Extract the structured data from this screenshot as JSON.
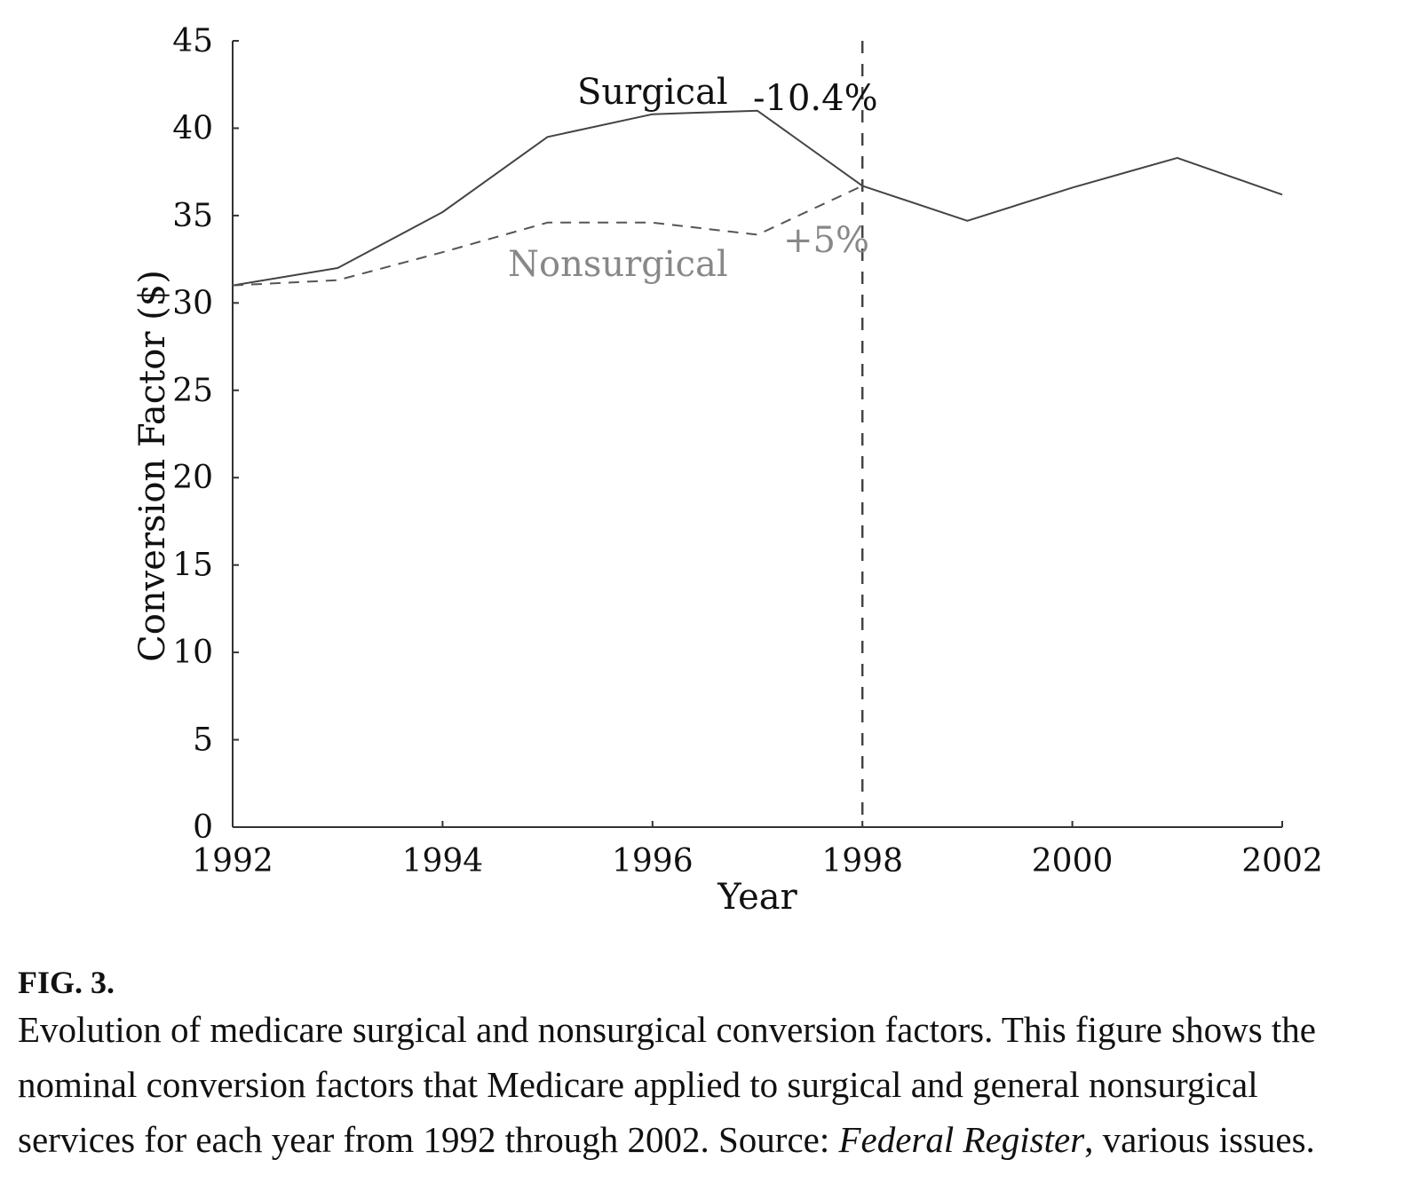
{
  "chart_data": {
    "type": "line",
    "title": "",
    "xlabel": "Year",
    "ylabel": "Conversion Factor ($)",
    "xlim": [
      1992,
      2002
    ],
    "ylim": [
      0,
      45
    ],
    "xticks": [
      1992,
      1994,
      1996,
      1998,
      2000,
      2002
    ],
    "yticks": [
      0,
      5,
      10,
      15,
      20,
      25,
      30,
      35,
      40,
      45
    ],
    "series": [
      {
        "name": "Surgical",
        "style": "solid",
        "color": "#444444",
        "x": [
          1992,
          1993,
          1994,
          1995,
          1996,
          1997,
          1998,
          1999,
          2000,
          2001,
          2002
        ],
        "values": [
          31.0,
          32.0,
          35.2,
          39.5,
          40.8,
          41.0,
          36.7,
          34.7,
          36.6,
          38.3,
          36.2
        ]
      },
      {
        "name": "Nonsurgical",
        "style": "dashed",
        "color": "#555555",
        "x": [
          1992,
          1993,
          1994,
          1995,
          1996,
          1997,
          1998
        ],
        "values": [
          31.0,
          31.3,
          32.9,
          34.6,
          34.6,
          33.9,
          36.7
        ]
      }
    ],
    "vline": {
      "x": 1998,
      "style": "dashed"
    },
    "annotations": [
      {
        "text": "Surgical"
      },
      {
        "text": "-10.4%"
      },
      {
        "text": "Nonsurgical"
      },
      {
        "text": "+5%"
      }
    ]
  },
  "caption": {
    "label": "FIG. 3.",
    "line1": "Evolution of medicare surgical and nonsurgical conversion factors. This figure shows the",
    "line2": "nominal conversion factors that Medicare applied to surgical and general nonsurgical",
    "line3_a": "services for each year from 1992 through 2002. Source: ",
    "line3_italic": "Federal Register",
    "line3_b": ", various issues."
  }
}
